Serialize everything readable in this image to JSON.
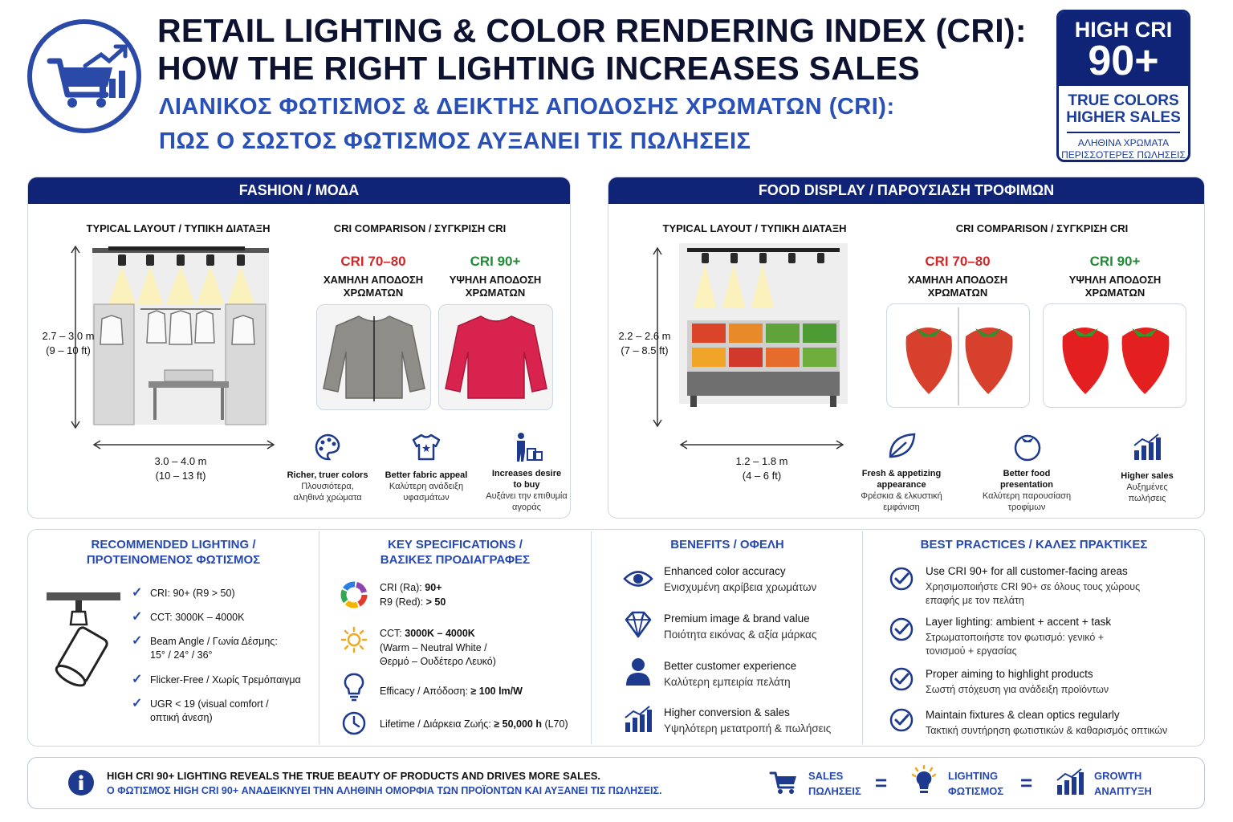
{
  "header": {
    "title_en_1": "RETAIL LIGHTING & COLOR RENDERING INDEX (CRI):",
    "title_en_2": "HOW THE RIGHT LIGHTING INCREASES SALES",
    "title_gr_1": "ΛΙΑΝΙΚΟΣ ΦΩΤΙΣΜΟΣ & ΔΕΙΚΤΗΣ ΑΠΟΔΟΣΗΣ ΧΡΩΜΑΤΩΝ (CRI):",
    "title_gr_2": "ΠΩΣ Ο ΣΩΣΤΟΣ ΦΩΤΙΣΜΟΣ ΑΥΞΑΝΕΙ ΤΙΣ ΠΩΛΗΣΕΙΣ",
    "logo_icon": "cart-growth-icon"
  },
  "badge": {
    "line1": "HIGH CRI",
    "line2": "90+",
    "line3a": "TRUE COLORS",
    "line3b": "HIGHER SALES",
    "line4a": "ΑΛΗΘΙΝΑ ΧΡΩΜΑΤΑ",
    "line4b": "ΠΕΡΙΣΣΟΤΕΡΕΣ ΠΩΛΗΣΕΙΣ"
  },
  "fashion": {
    "title": "FASHION / ΜΟΔΑ",
    "layout_title": "TYPICAL LAYOUT / ΤΥΠΙΚΗ ΔΙΑΤΑΞΗ",
    "compare_title": "CRI COMPARISON / ΣΥΓΚΡΙΣΗ CRI",
    "height_m": "2.7 – 3.0 m",
    "height_ft": "(9 – 10 ft)",
    "width_m": "3.0 – 4.0 m",
    "width_ft": "(10 – 13 ft)",
    "low_label": "CRI 70–80",
    "low_desc_1": "ΧΑΜΗΛΗ ΑΠΟΔΟΣΗ",
    "low_desc_2": "ΧΡΩΜΑΤΩΝ",
    "high_label": "CRI 90+",
    "high_desc_1": "ΥΨΗΛΗ ΑΠΟΔΟΣΗ",
    "high_desc_2": "ΧΡΩΜΑΤΩΝ",
    "benefits": [
      {
        "icon": "palette-icon",
        "en": "Richer, truer colors",
        "gr1": "Πλουσιότερα,",
        "gr2": "αληθινά χρώματα"
      },
      {
        "icon": "shirt-icon",
        "en": "Better fabric appeal",
        "gr1": "Καλύτερη ανάδειξη",
        "gr2": "υφασμάτων"
      },
      {
        "icon": "shopper-icon",
        "en": "Increases desire",
        "en2": "to buy",
        "gr1": "Αυξάνει την επιθυμία",
        "gr2": "αγοράς"
      }
    ]
  },
  "food": {
    "title": "FOOD DISPLAY / ΠΑΡΟΥΣΙΑΣΗ ΤΡΟΦΙΜΩΝ",
    "layout_title": "TYPICAL LAYOUT / ΤΥΠΙΚΗ ΔΙΑΤΑΞΗ",
    "compare_title": "CRI COMPARISON / ΣΥΓΚΡΙΣΗ CRI",
    "height_m": "2.2 – 2.6 m",
    "height_ft": "(7 – 8.5 ft)",
    "width_m": "1.2 – 1.8 m",
    "width_ft": "(4 – 6 ft)",
    "low_label": "CRI 70–80",
    "low_desc_1": "ΧΑΜΗΛΗ ΑΠΟΔΟΣΗ",
    "low_desc_2": "ΧΡΩΜΑΤΩΝ",
    "high_label": "CRI 90+",
    "high_desc_1": "ΥΨΗΛΗ ΑΠΟΔΟΣΗ",
    "high_desc_2": "ΧΡΩΜΑΤΩΝ",
    "benefits": [
      {
        "icon": "leaf-icon",
        "en": "Fresh & appetizing",
        "en2": "appearance",
        "gr1": "Φρέσκια & ελκυστική",
        "gr2": "εμφάνιση"
      },
      {
        "icon": "tomato-icon",
        "en": "Better food",
        "en2": "presentation",
        "gr1": "Καλύτερη παρουσίαση",
        "gr2": "τροφίμων"
      },
      {
        "icon": "sales-chart-icon",
        "en": "Higher sales",
        "gr1": "Αυξημένες",
        "gr2": "πωλήσεις"
      }
    ]
  },
  "recommended": {
    "title1": "RECOMMENDED LIGHTING /",
    "title2": "ΠΡΟΤΕΙΝΟΜΕΝΟΣ ΦΩΤΙΣΜΟΣ",
    "items": [
      {
        "a": "CRI: 90+ (R9 > 50)"
      },
      {
        "a": "CCT: 3000K – 4000K"
      },
      {
        "a": "Beam Angle / Γωνία Δέσμης:",
        "b": "15° / 24° / 36°"
      },
      {
        "a": "Flicker-Free / Χωρίς Τρεμόπαιγμα"
      },
      {
        "a": "UGR < 19 (visual comfort /",
        "b": "οπτική άνεση)"
      }
    ]
  },
  "specs": {
    "title1": "KEY SPECIFICATIONS /",
    "title2": "ΒΑΣΙΚΕΣ ΠΡΟΔΙΑΓΡΑΦΕΣ",
    "cri_label": "CRI (Ra): ",
    "cri_value": "90+",
    "r9_label": "R9 (Red): ",
    "r9_value": "> 50",
    "cct_label": "CCT: ",
    "cct_value": "3000K – 4000K",
    "cct_desc1": "(Warm – Neutral White /",
    "cct_desc2": "Θερμό – Ουδέτερο Λευκό)",
    "eff_label": "Efficacy / Απόδοση: ",
    "eff_value": "≥ 100 lm/W",
    "life_label": "Lifetime / Διάρκεια Ζωής: ",
    "life_value": "≥ 50,000 h",
    "life_note": " (L70)"
  },
  "benefits": {
    "title": "BENEFITS / ΟΦΕΛΗ",
    "items": [
      {
        "icon": "eye-icon",
        "en": "Enhanced color accuracy",
        "gr": "Ενισχυμένη ακρίβεια χρωμάτων"
      },
      {
        "icon": "diamond-icon",
        "en": "Premium image & brand value",
        "gr": "Ποιότητα εικόνας & αξία μάρκας"
      },
      {
        "icon": "user-icon",
        "en": "Better customer experience",
        "gr": "Καλύτερη εμπειρία πελάτη"
      },
      {
        "icon": "bar-chart-icon",
        "en": "Higher conversion & sales",
        "gr": "Υψηλότερη μετατροπή & πωλήσεις"
      }
    ]
  },
  "practices": {
    "title": "BEST PRACTICES / ΚΑΛΕΣ ΠΡΑΚΤΙΚΕΣ",
    "items": [
      {
        "en": "Use CRI 90+ for all customer-facing areas",
        "gr1": "Χρησιμοποιήστε CRI 90+ σε όλους τους χώρους",
        "gr2": "επαφής με τον πελάτη"
      },
      {
        "en": "Layer lighting: ambient + accent + task",
        "gr1": "Στρωματοποιήστε τον φωτισμό: γενικό +",
        "gr2": "τονισμού + εργασίας"
      },
      {
        "en": "Proper aiming to highlight products",
        "gr1": "Σωστή στόχευση για ανάδειξη προϊόντων"
      },
      {
        "en": "Maintain fixtures & clean optics regularly",
        "gr1": "Τακτική συντήρηση φωτιστικών & καθαρισμός οπτικών"
      }
    ]
  },
  "footer": {
    "line1": "HIGH CRI 90+ LIGHTING REVEALS THE TRUE BEAUTY OF PRODUCTS AND DRIVES MORE SALES.",
    "line2": "Ο ΦΩΤΙΣΜΟΣ HIGH CRI 90+ ΑΝΑΔΕΙΚΝΥΕΙ ΤΗΝ ΑΛΗΘΙΝΗ ΟΜΟΡΦΙΑ ΤΩΝ ΠΡΟΪΟΝΤΩΝ ΚΑΙ ΑΥΞΑΝΕΙ ΤΙΣ ΠΩΛΗΣΕΙΣ.",
    "sales_en": "SALES",
    "sales_gr": "ΠΩΛΗΣΕΙΣ",
    "lighting_en": "LIGHTING",
    "lighting_gr": "ΦΩΤΙΣΜΟΣ",
    "growth_en": "GROWTH",
    "growth_gr": "ΑΝΑΠΤΥΞΗ",
    "eq": "="
  },
  "colors": {
    "navy": "#0f2377",
    "accent_blue": "#2548b3",
    "low_cri_red": "#d42727",
    "high_cri_green": "#1e8d34"
  }
}
